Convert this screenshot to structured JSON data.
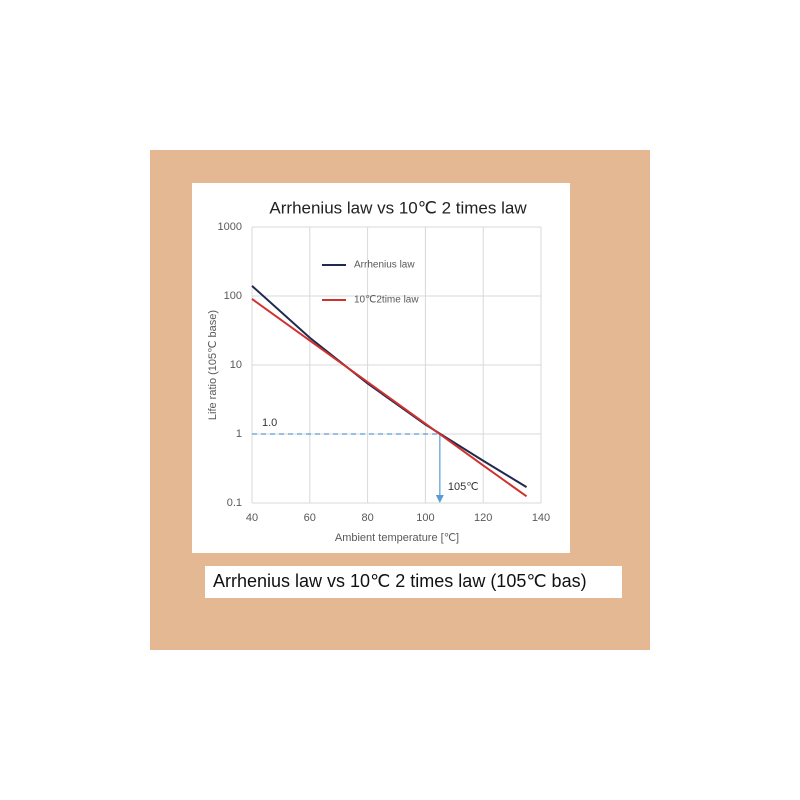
{
  "chart_data": {
    "type": "line",
    "title": "Arrhenius law vs 10℃ 2 times law",
    "x_label": "Ambient temperature [℃]",
    "y_label": "Life ratio (105℃ base)",
    "log_y": true,
    "grid": true,
    "legend": "top-center",
    "xlim": [
      40,
      140
    ],
    "xticks": [
      40,
      60,
      80,
      100,
      120,
      140
    ],
    "ylim": [
      0.1,
      1000
    ],
    "yticks": [
      0.1,
      1,
      10,
      100,
      1000
    ],
    "series": [
      {
        "name": "Arrhenius law",
        "color": "#1f2a4f",
        "x": [
          40,
          60,
          80,
          100,
          120,
          135
        ],
        "values": [
          140,
          24.8,
          5.4,
          1.37,
          0.41,
          0.17
        ]
      },
      {
        "name": "10℃2time law",
        "color": "#d0312d",
        "x": [
          40,
          60,
          80,
          100,
          120,
          135
        ],
        "values": [
          90.5,
          22.6,
          5.66,
          1.41,
          0.35,
          0.125
        ]
      }
    ],
    "reference": {
      "y": 1,
      "x": 105,
      "color": "#5b9bd5"
    },
    "annotations": [
      "1.0",
      "105℃"
    ]
  },
  "caption": "Arrhenius law vs 10℃  2 times law (105℃  bas)"
}
